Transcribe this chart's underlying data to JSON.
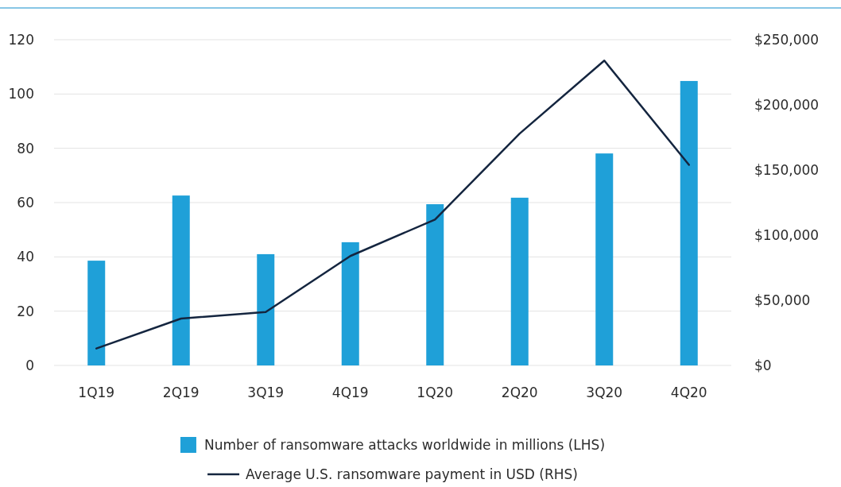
{
  "chart_data": {
    "type": "bar",
    "categories": [
      "1Q19",
      "2Q19",
      "3Q19",
      "4Q19",
      "1Q20",
      "2Q20",
      "3Q20",
      "4Q20"
    ],
    "series": [
      {
        "name": "Number of ransomware attacks worldwide in millions (LHS)",
        "color": "#1fa0d8",
        "values": [
          38.6,
          62.6,
          41,
          45.4,
          59.4,
          61.8,
          78.1,
          104.8
        ]
      },
      {
        "name": "Average U.S. ransomware payment in USD (RHS)",
        "type": "line",
        "axis": "y2",
        "color": "#14253f",
        "values": [
          13000,
          36000,
          41000,
          84000,
          112000,
          178000,
          234000,
          154000
        ]
      }
    ],
    "ylim": [
      0,
      120
    ],
    "yticks": [
      0,
      20,
      40,
      60,
      80,
      100,
      120
    ],
    "y2lim": [
      0,
      250000
    ],
    "y2ticks": [
      {
        "value": 0,
        "label": "$0"
      },
      {
        "value": 50000,
        "label": "$50,000"
      },
      {
        "value": 100000,
        "label": "$100,000"
      },
      {
        "value": 150000,
        "label": "$150,000"
      },
      {
        "value": 200000,
        "label": "$200,000"
      },
      {
        "value": 250000,
        "label": "$250,000"
      }
    ],
    "grid": "y",
    "legend": "bottom",
    "marker": "none",
    "line_style": "solid"
  }
}
